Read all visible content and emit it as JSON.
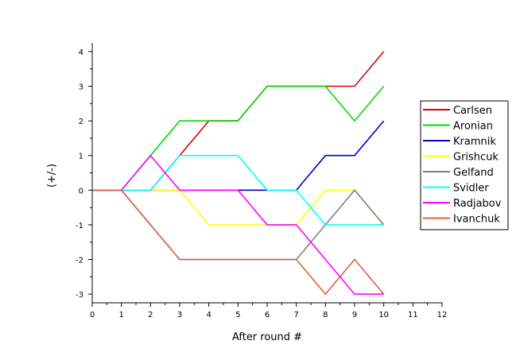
{
  "chart_data": {
    "type": "line",
    "title": "",
    "xlabel": "After round #",
    "ylabel": "(+/-)",
    "xlim": [
      0,
      12
    ],
    "ylim": [
      -3.25,
      4.25
    ],
    "xticks": [
      0,
      1,
      2,
      3,
      4,
      5,
      6,
      7,
      8,
      9,
      10,
      11,
      12
    ],
    "yticks": [
      -3,
      -2,
      -1,
      0,
      1,
      2,
      3,
      4
    ],
    "grid": false,
    "legend_position": "right",
    "series": [
      {
        "name": "Carlsen",
        "color": "#e00000",
        "x": [
          0,
          1,
          2,
          3,
          4,
          5,
          6,
          7,
          8,
          9,
          10
        ],
        "y": [
          0,
          0,
          0,
          1,
          2,
          2,
          3,
          3,
          3,
          3,
          4
        ]
      },
      {
        "name": "Aronian",
        "color": "#00dd00",
        "x": [
          0,
          1,
          2,
          3,
          4,
          5,
          6,
          7,
          8,
          9,
          10
        ],
        "y": [
          0,
          0,
          1,
          2,
          2,
          2,
          3,
          3,
          3,
          2,
          3
        ]
      },
      {
        "name": "Kramnik",
        "color": "#0000c0",
        "x": [
          0,
          1,
          2,
          3,
          4,
          5,
          6,
          7,
          8,
          9,
          10
        ],
        "y": [
          0,
          0,
          0,
          0,
          0,
          0,
          0,
          0,
          1,
          1,
          2
        ]
      },
      {
        "name": "Grishcuk",
        "color": "#ffff00",
        "x": [
          0,
          1,
          2,
          3,
          4,
          5,
          6,
          7,
          8,
          9,
          10
        ],
        "y": [
          0,
          0,
          0,
          0,
          -1,
          -1,
          -1,
          -1,
          0,
          0,
          -1
        ]
      },
      {
        "name": "Gelfand",
        "color": "#808080",
        "x": [
          0,
          1,
          2,
          3,
          4,
          5,
          6,
          7,
          8,
          9,
          10
        ],
        "y": [
          0,
          0,
          -1,
          -2,
          -2,
          -2,
          -2,
          -2,
          -1,
          0,
          -1
        ]
      },
      {
        "name": "Svidler",
        "color": "#00ffff",
        "x": [
          0,
          1,
          2,
          3,
          4,
          5,
          6,
          7,
          8,
          9,
          10
        ],
        "y": [
          0,
          0,
          0,
          1,
          1,
          1,
          0,
          0,
          -1,
          -1,
          -1
        ]
      },
      {
        "name": "Radjabov",
        "color": "#ff00ff",
        "x": [
          0,
          1,
          2,
          3,
          4,
          5,
          6,
          7,
          8,
          9,
          10
        ],
        "y": [
          0,
          0,
          1,
          0,
          0,
          0,
          -1,
          -1,
          -2,
          -3,
          -3
        ]
      },
      {
        "name": "Ivanchuk",
        "color": "#e06040",
        "x": [
          0,
          1,
          2,
          3,
          4,
          5,
          6,
          7,
          8,
          9,
          10
        ],
        "y": [
          0,
          0,
          -1,
          -2,
          -2,
          -2,
          -2,
          -2,
          -3,
          -2,
          -3
        ]
      }
    ]
  }
}
